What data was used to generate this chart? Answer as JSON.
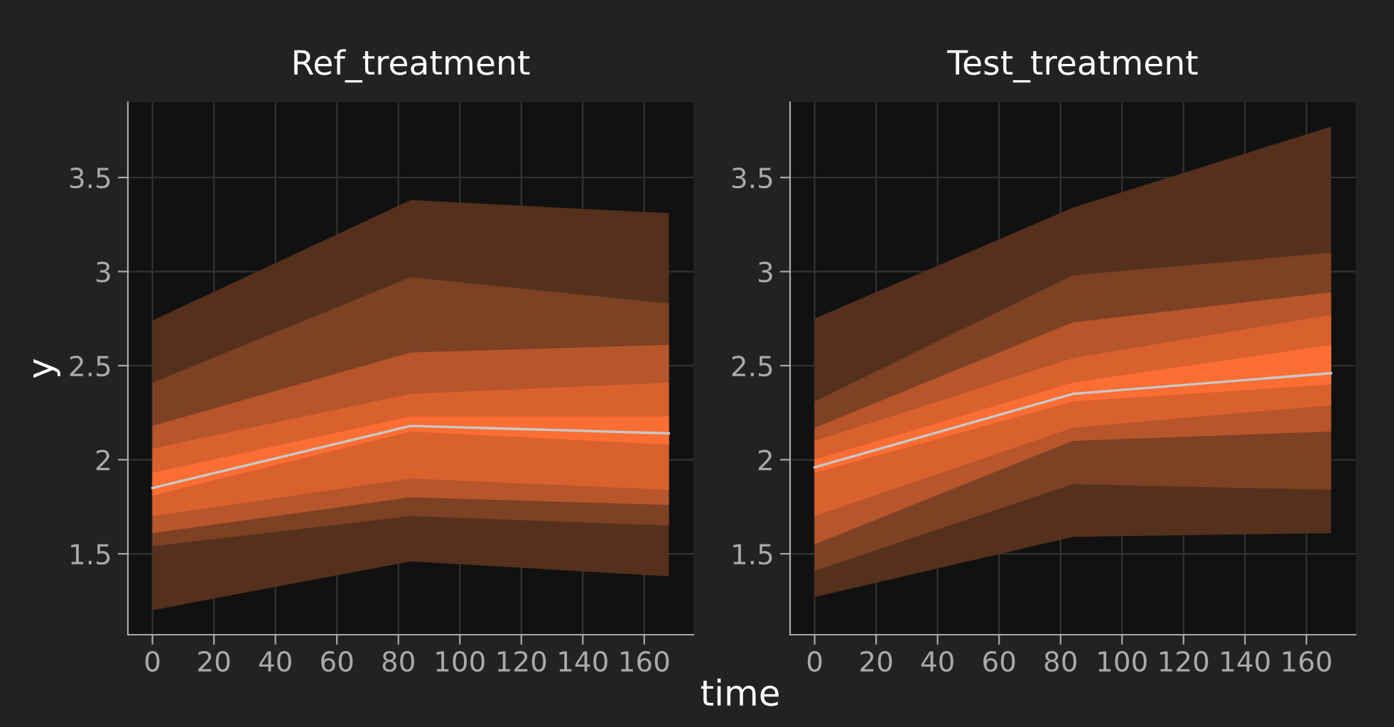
{
  "chart_data": [
    {
      "type": "line",
      "title": "Ref_treatment",
      "ylabel": "y",
      "x": [
        0,
        84,
        168
      ],
      "xlim": [
        -8,
        176
      ],
      "ylim": [
        1.07,
        3.9
      ],
      "xticks": [
        0,
        20,
        40,
        60,
        80,
        100,
        120,
        140,
        160
      ],
      "yticks": [
        1.5,
        2,
        2.5,
        3,
        3.5
      ],
      "grid": true,
      "series": [
        {
          "color": "#55301d",
          "values": [
            null,
            null,
            null
          ],
          "lower": [
            1.2,
            1.46,
            1.38
          ],
          "upper": [
            2.74,
            3.38,
            3.31
          ]
        },
        {
          "color": "#7d4124",
          "values": [
            null,
            null,
            null
          ],
          "lower": [
            1.54,
            1.7,
            1.65
          ],
          "upper": [
            2.41,
            2.97,
            2.83
          ]
        },
        {
          "color": "#b7552b",
          "values": [
            null,
            null,
            null
          ],
          "lower": [
            1.61,
            1.8,
            1.76
          ],
          "upper": [
            2.18,
            2.57,
            2.61
          ]
        },
        {
          "color": "#d9612e",
          "values": [
            null,
            null,
            null
          ],
          "lower": [
            1.7,
            1.9,
            1.84
          ],
          "upper": [
            2.06,
            2.35,
            2.41
          ]
        },
        {
          "color": "#fb6e33",
          "values": [
            null,
            null,
            null
          ],
          "lower": [
            1.81,
            2.15,
            2.08
          ],
          "upper": [
            1.93,
            2.23,
            2.23
          ]
        },
        {
          "color": "#c8c8c8",
          "values": [
            1.85,
            2.18,
            2.14
          ]
        }
      ]
    },
    {
      "type": "line",
      "title": "Test_treatment",
      "xlabel": "time",
      "x": [
        0,
        84,
        168
      ],
      "xlim": [
        -8,
        176
      ],
      "ylim": [
        1.07,
        3.9
      ],
      "xticks": [
        0,
        20,
        40,
        60,
        80,
        100,
        120,
        140,
        160
      ],
      "yticks": [
        1.5,
        2,
        2.5,
        3,
        3.5
      ],
      "grid": true,
      "series": [
        {
          "color": "#55301d",
          "values": [
            null,
            null,
            null
          ],
          "lower": [
            1.27,
            1.59,
            1.61
          ],
          "upper": [
            2.75,
            3.34,
            3.77
          ]
        },
        {
          "color": "#7d4124",
          "values": [
            null,
            null,
            null
          ],
          "lower": [
            1.41,
            1.87,
            1.84
          ],
          "upper": [
            2.31,
            2.98,
            3.1
          ]
        },
        {
          "color": "#b7552b",
          "values": [
            null,
            null,
            null
          ],
          "lower": [
            1.55,
            2.1,
            2.15
          ],
          "upper": [
            2.17,
            2.73,
            2.89
          ]
        },
        {
          "color": "#d9612e",
          "values": [
            null,
            null,
            null
          ],
          "lower": [
            1.7,
            2.17,
            2.29
          ],
          "upper": [
            2.1,
            2.54,
            2.77
          ]
        },
        {
          "color": "#fb6e33",
          "values": [
            null,
            null,
            null
          ],
          "lower": [
            1.93,
            2.31,
            2.4
          ],
          "upper": [
            2.0,
            2.41,
            2.61
          ]
        },
        {
          "color": "#c8c8c8",
          "values": [
            1.96,
            2.35,
            2.46
          ]
        }
      ]
    }
  ]
}
